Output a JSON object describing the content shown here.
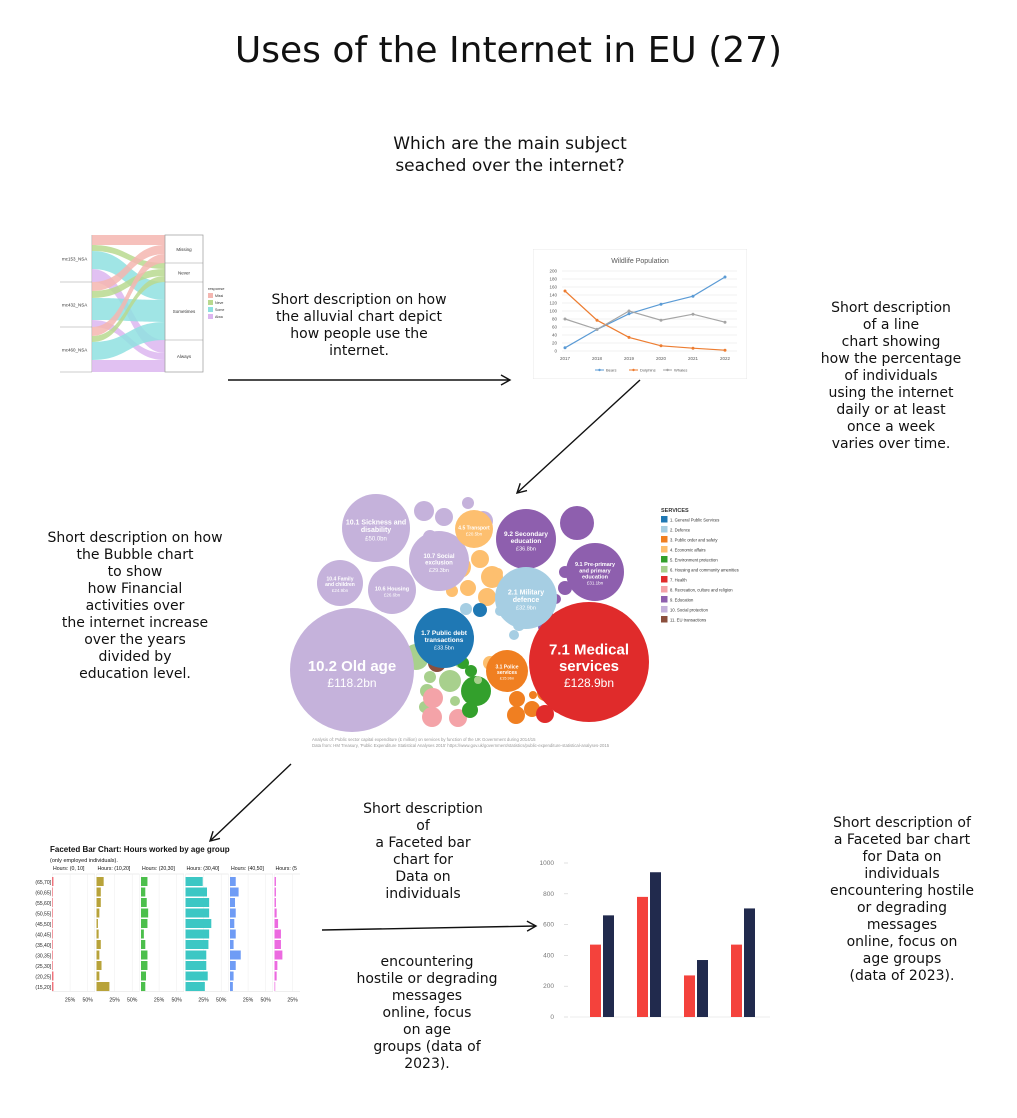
{
  "page": {
    "title": "Uses of the Internet in EU (27)"
  },
  "question": "Which are the main subject\nseached over the internet?",
  "descriptions": {
    "alluvial": "Short description on how\nthe alluvial chart depict\nhow people use the\ninternet.",
    "line": "Short description\nof a line\nchart showing\nhow the percentage\nof individuals\nusing the internet\ndaily or at least\nonce a week\nvaries over time.",
    "bubble": "Short description on how\nthe Bubble chart\nto show\nhow Financial\nactivities over\nthe internet increase\nover the years\ndivided by\neducation level.",
    "faceted_a": "Short description\nof\na Faceted bar\nchart for\nData on\nindividuals",
    "faceted_b": "encountering\nhostile or degrading\nmessages\nonline, focus\non age\ngroups (data of\n2023).",
    "faceted_right": "Short description  of\na Faceted bar chart\nfor Data on\nindividuals\nencountering hostile\nor degrading\nmessages\nonline, focus on\nage groups\n(data of 2023)."
  },
  "alluvial": {
    "left_labels": [
      "mc153_NSA",
      "mc432_NSA",
      "mc460_NSA"
    ],
    "right_labels": [
      "Missing",
      "Never",
      "Sometimes",
      "Always"
    ],
    "legend_title": "response",
    "legend": [
      "Missi",
      "Neve",
      "Some",
      "Alwa"
    ],
    "colors": [
      "#f4b6b0",
      "#b9d98f",
      "#8fe0e0",
      "#dcb6f0"
    ]
  },
  "chart_data": [
    {
      "type": "line",
      "title": "Wildlife Population",
      "x": [
        "2017",
        "2018",
        "2019",
        "2020",
        "2021",
        "2022"
      ],
      "ylim": [
        0,
        200
      ],
      "yticks": [
        0,
        20,
        40,
        60,
        80,
        100,
        120,
        140,
        160,
        180,
        200
      ],
      "grid": true,
      "legend": "bottom",
      "series": [
        {
          "name": "Bears",
          "color": "#5b9bd5",
          "values": [
            8,
            54,
            93,
            117,
            137,
            185
          ]
        },
        {
          "name": "Dolphins",
          "color": "#ed7d31",
          "values": [
            150,
            77,
            34,
            13,
            7,
            2
          ]
        },
        {
          "name": "Whales",
          "color": "#a5a5a5",
          "values": [
            80,
            54,
            100,
            77,
            92,
            72
          ]
        }
      ]
    },
    {
      "type": "bubble",
      "legend_title": "SERVICES",
      "legend": [
        {
          "label": "1. General Public Services",
          "color": "#1f78b4"
        },
        {
          "label": "2. Defence",
          "color": "#a6cee3"
        },
        {
          "label": "3. Public order and safety",
          "color": "#f07f21"
        },
        {
          "label": "4. Economic affairs",
          "color": "#fdbf6f"
        },
        {
          "label": "5. Environment protection",
          "color": "#33a02c"
        },
        {
          "label": "6. Housing and community amenities",
          "color": "#a8d08d"
        },
        {
          "label": "7. Health",
          "color": "#e02b2b"
        },
        {
          "label": "8. Recreation, culture and religion",
          "color": "#f4a3a8"
        },
        {
          "label": "9. Education",
          "color": "#8e5fae"
        },
        {
          "label": "10. Social protection",
          "color": "#c5b2db"
        },
        {
          "label": "11. EU transactions",
          "color": "#8b4f3d"
        }
      ],
      "labeled_bubbles": [
        {
          "name": "10.2 Old age",
          "value": "£118.2bn",
          "service": 10
        },
        {
          "name": "7.1 Medical services",
          "value": "£128.9bn",
          "service": 7
        },
        {
          "name": "10.1 Sickness and disability",
          "value": "£50.0bn",
          "service": 10
        },
        {
          "name": "10.7 Social exclusion",
          "value": "£29.3bn",
          "service": 10
        },
        {
          "name": "10.4 Family and children",
          "value": "£24.9bn",
          "service": 10
        },
        {
          "name": "10.6 Housing",
          "value": "£26.6bn",
          "service": 10
        },
        {
          "name": "1.7 Public debt transactions",
          "value": "£33.5bn",
          "service": 1
        },
        {
          "name": "4.5 Transport",
          "value": "£20.5bn",
          "service": 4
        },
        {
          "name": "9.2 Secondary education",
          "value": "£36.8bn",
          "service": 9
        },
        {
          "name": "9.1 Pre-primary and primary education",
          "value": "£31.1bn",
          "service": 9
        },
        {
          "name": "2.1 Military defence",
          "value": "£32.9bn",
          "service": 2
        },
        {
          "name": "3.1 Police services",
          "value": "£15.9bn",
          "service": 3
        }
      ],
      "caption": "Analysis of: Public sector capital expenditure (£ million) on services by function of the UK Government during 2014/15\nData from: HM Treasury, 'Public Expenditure Statistical Analyses 2015' https://www.gov.uk/government/statistics/public-expenditure-statistical-analyses-2015"
    },
    {
      "type": "bar",
      "title": "Faceted Bar Chart: Hours worked by age group",
      "subtitle": "(only employed individuals).",
      "facets": [
        "Hours: (0, 10]",
        "Hours: (10,20]",
        "Hours: (20,30]",
        "Hours: (30,40]",
        "Hours: (40,50]",
        "Hours: (5"
      ],
      "facet_colors": [
        "#f0717a",
        "#b8a33a",
        "#4cbf4c",
        "#3cc7c4",
        "#6f9cf5",
        "#ec6ae0"
      ],
      "row_labels": [
        "(65,70]",
        "(60,65]",
        "(55,60]",
        "(50,55]",
        "(45,50]",
        "(40,45]",
        "(35,40]",
        "(30,35]",
        "(25,30]",
        "(20,25]",
        "(15,20]"
      ],
      "x_ticks": [
        "25%",
        "50%"
      ],
      "xlim": [
        0,
        60
      ],
      "values_pct": [
        [
          2,
          1,
          1,
          1,
          1,
          1,
          1,
          1,
          1,
          2,
          2
        ],
        [
          10,
          6,
          6,
          4,
          2,
          3,
          6,
          4,
          7,
          4,
          18
        ],
        [
          9,
          6,
          8,
          10,
          9,
          4,
          6,
          9,
          9,
          7,
          6
        ],
        [
          24,
          30,
          33,
          33,
          36,
          33,
          32,
          29,
          29,
          31,
          27
        ],
        [
          8,
          12,
          7,
          8,
          6,
          8,
          5,
          15,
          8,
          5,
          4
        ],
        [
          2,
          2,
          2,
          3,
          5,
          9,
          9,
          11,
          4,
          3,
          1
        ]
      ]
    },
    {
      "type": "bar",
      "ylim": [
        0,
        1000
      ],
      "yticks": [
        0,
        200,
        400,
        600,
        800,
        1000
      ],
      "series": [
        {
          "color": "#f4423c",
          "values": [
            470,
            780,
            270,
            470
          ]
        },
        {
          "color": "#212a4d",
          "values": [
            660,
            940,
            370,
            705
          ]
        }
      ]
    }
  ]
}
